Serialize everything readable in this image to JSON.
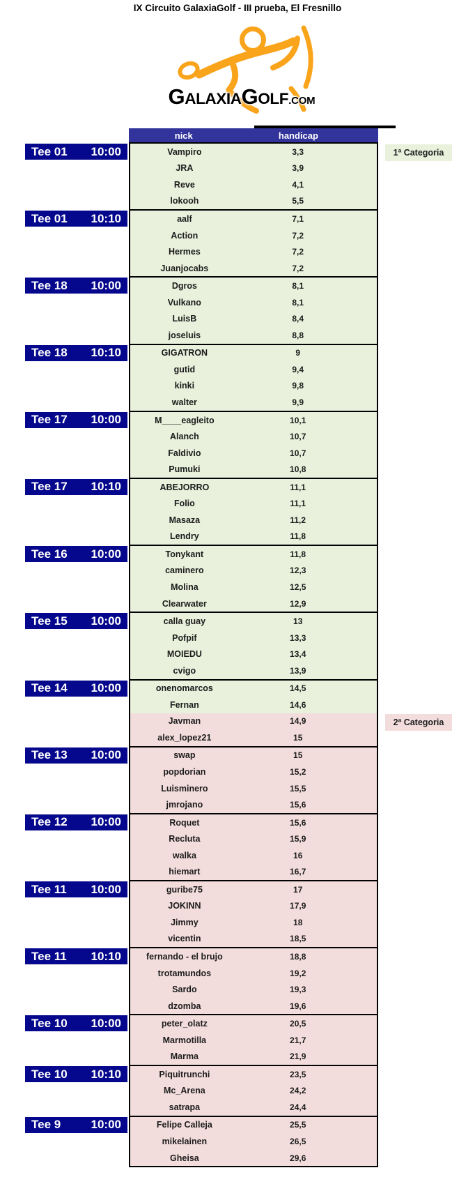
{
  "title": "IX Circuito GalaxiaGolf - III prueba, El Fresnillo",
  "logo": {
    "brand_main": "GALAXIA",
    "brand_sub": "GOLF",
    "brand_tld": ".COM",
    "orange": "#F9A41B"
  },
  "table": {
    "headers": {
      "nick": "nick",
      "handicap": "handicap"
    }
  },
  "colors": {
    "header_bg": "#32339B",
    "tee_bg": "#05088C",
    "cat1_bg": "#E9F0DB",
    "cat2_bg": "#F3DDDC",
    "border": "#000000"
  },
  "categories": [
    {
      "id": 1,
      "label": "1ª Categoria"
    },
    {
      "id": 2,
      "label": "2ª Categoria"
    }
  ],
  "groups": [
    {
      "tee": "Tee 01",
      "time": "10:00",
      "players": [
        {
          "nick": "Vampiro",
          "handicap": "3,3",
          "cat": 1
        },
        {
          "nick": "JRA",
          "handicap": "3,9",
          "cat": 1
        },
        {
          "nick": "Reve",
          "handicap": "4,1",
          "cat": 1
        },
        {
          "nick": "lokooh",
          "handicap": "5,5",
          "cat": 1
        }
      ]
    },
    {
      "tee": "Tee 01",
      "time": "10:10",
      "players": [
        {
          "nick": "aalf",
          "handicap": "7,1",
          "cat": 1
        },
        {
          "nick": "Action",
          "handicap": "7,2",
          "cat": 1
        },
        {
          "nick": "Hermes",
          "handicap": "7,2",
          "cat": 1
        },
        {
          "nick": "Juanjocabs",
          "handicap": "7,2",
          "cat": 1
        }
      ]
    },
    {
      "tee": "Tee 18",
      "time": "10:00",
      "players": [
        {
          "nick": "Dgros",
          "handicap": "8,1",
          "cat": 1
        },
        {
          "nick": "Vulkano",
          "handicap": "8,1",
          "cat": 1
        },
        {
          "nick": "LuisB",
          "handicap": "8,4",
          "cat": 1
        },
        {
          "nick": "joseluis",
          "handicap": "8,8",
          "cat": 1
        }
      ]
    },
    {
      "tee": "Tee 18",
      "time": "10:10",
      "players": [
        {
          "nick": "GIGATRON",
          "handicap": "9",
          "cat": 1
        },
        {
          "nick": "gutid",
          "handicap": "9,4",
          "cat": 1
        },
        {
          "nick": "kinki",
          "handicap": "9,8",
          "cat": 1
        },
        {
          "nick": "walter",
          "handicap": "9,9",
          "cat": 1
        }
      ]
    },
    {
      "tee": "Tee 17",
      "time": "10:00",
      "players": [
        {
          "nick": "M____eagleito",
          "handicap": "10,1",
          "cat": 1
        },
        {
          "nick": "Alanch",
          "handicap": "10,7",
          "cat": 1
        },
        {
          "nick": "Faldivio",
          "handicap": "10,7",
          "cat": 1
        },
        {
          "nick": "Pumuki",
          "handicap": "10,8",
          "cat": 1
        }
      ]
    },
    {
      "tee": "Tee 17",
      "time": "10:10",
      "players": [
        {
          "nick": "ABEJORRO",
          "handicap": "11,1",
          "cat": 1
        },
        {
          "nick": "Folio",
          "handicap": "11,1",
          "cat": 1
        },
        {
          "nick": "Masaza",
          "handicap": "11,2",
          "cat": 1
        },
        {
          "nick": "Lendry",
          "handicap": "11,8",
          "cat": 1
        }
      ]
    },
    {
      "tee": "Tee 16",
      "time": "10:00",
      "players": [
        {
          "nick": "Tonykant",
          "handicap": "11,8",
          "cat": 1
        },
        {
          "nick": "caminero",
          "handicap": "12,3",
          "cat": 1
        },
        {
          "nick": "Molina",
          "handicap": "12,5",
          "cat": 1
        },
        {
          "nick": "Clearwater",
          "handicap": "12,9",
          "cat": 1
        }
      ]
    },
    {
      "tee": "Tee 15",
      "time": "10:00",
      "players": [
        {
          "nick": "calla guay",
          "handicap": "13",
          "cat": 1
        },
        {
          "nick": "Pofpif",
          "handicap": "13,3",
          "cat": 1
        },
        {
          "nick": "MOIEDU",
          "handicap": "13,4",
          "cat": 1
        },
        {
          "nick": "cvigo",
          "handicap": "13,9",
          "cat": 1
        }
      ]
    },
    {
      "tee": "Tee 14",
      "time": "10:00",
      "players": [
        {
          "nick": "onenomarcos",
          "handicap": "14,5",
          "cat": 1
        },
        {
          "nick": "Fernan",
          "handicap": "14,6",
          "cat": 1
        },
        {
          "nick": "Javman",
          "handicap": "14,9",
          "cat": 2
        },
        {
          "nick": "alex_lopez21",
          "handicap": "15",
          "cat": 2
        }
      ]
    },
    {
      "tee": "Tee 13",
      "time": "10:00",
      "players": [
        {
          "nick": "swap",
          "handicap": "15",
          "cat": 2
        },
        {
          "nick": "popdorian",
          "handicap": "15,2",
          "cat": 2
        },
        {
          "nick": "Luisminero",
          "handicap": "15,5",
          "cat": 2
        },
        {
          "nick": "jmrojano",
          "handicap": "15,6",
          "cat": 2
        }
      ]
    },
    {
      "tee": "Tee 12",
      "time": "10:00",
      "players": [
        {
          "nick": "Roquet",
          "handicap": "15,6",
          "cat": 2
        },
        {
          "nick": "Recluta",
          "handicap": "15,9",
          "cat": 2
        },
        {
          "nick": "walka",
          "handicap": "16",
          "cat": 2
        },
        {
          "nick": "hiemart",
          "handicap": "16,7",
          "cat": 2
        }
      ]
    },
    {
      "tee": "Tee 11",
      "time": "10:00",
      "players": [
        {
          "nick": "guribe75",
          "handicap": "17",
          "cat": 2
        },
        {
          "nick": "JOKINN",
          "handicap": "17,9",
          "cat": 2
        },
        {
          "nick": "Jimmy",
          "handicap": "18",
          "cat": 2
        },
        {
          "nick": "vicentin",
          "handicap": "18,5",
          "cat": 2
        }
      ]
    },
    {
      "tee": "Tee 11",
      "time": "10:10",
      "players": [
        {
          "nick": "fernando - el brujo",
          "handicap": "18,8",
          "cat": 2
        },
        {
          "nick": "trotamundos",
          "handicap": "19,2",
          "cat": 2
        },
        {
          "nick": "Sardo",
          "handicap": "19,3",
          "cat": 2
        },
        {
          "nick": "dzomba",
          "handicap": "19,6",
          "cat": 2
        }
      ]
    },
    {
      "tee": "Tee 10",
      "time": "10:00",
      "players": [
        {
          "nick": "peter_olatz",
          "handicap": "20,5",
          "cat": 2
        },
        {
          "nick": "Marmotilla",
          "handicap": "21,7",
          "cat": 2
        },
        {
          "nick": "Marma",
          "handicap": "21,9",
          "cat": 2
        }
      ]
    },
    {
      "tee": "Tee 10",
      "time": "10:10",
      "players": [
        {
          "nick": "Piquitrunchi",
          "handicap": "23,5",
          "cat": 2
        },
        {
          "nick": "Mc_Arena",
          "handicap": "24,2",
          "cat": 2
        },
        {
          "nick": "satrapa",
          "handicap": "24,4",
          "cat": 2
        }
      ]
    },
    {
      "tee": "Tee 9",
      "time": "10:00",
      "players": [
        {
          "nick": "Felipe Calleja",
          "handicap": "25,5",
          "cat": 2
        },
        {
          "nick": "mikelainen",
          "handicap": "26,5",
          "cat": 2
        },
        {
          "nick": "Gheisa",
          "handicap": "29,6",
          "cat": 2
        }
      ]
    }
  ]
}
